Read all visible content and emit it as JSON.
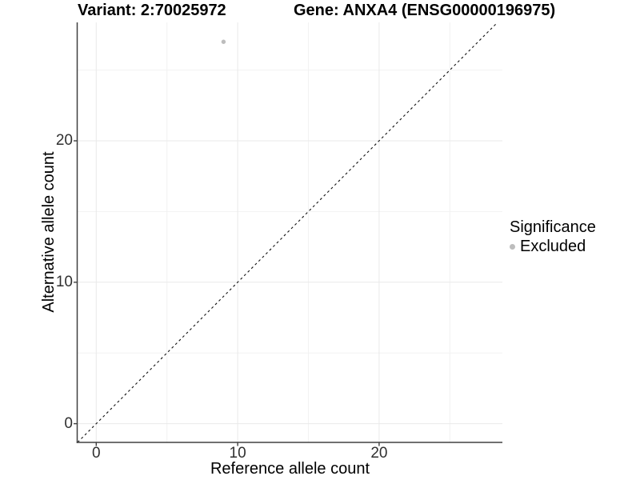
{
  "titles": {
    "variant": "Variant: 2:70025972",
    "gene": "Gene: ANXA4 (ENSG00000196975)"
  },
  "axes": {
    "x": {
      "label": "Reference allele count",
      "ticks": [
        "0",
        "10",
        "20"
      ]
    },
    "y": {
      "label": "Alternative allele count",
      "ticks": [
        "0",
        "10",
        "20"
      ]
    }
  },
  "legend": {
    "title": "Significance",
    "items": [
      {
        "label": "Excluded",
        "color": "#BDBDBD"
      }
    ]
  },
  "chart_data": {
    "type": "scatter",
    "title": "Variant: 2:70025972 / Gene: ANXA4 (ENSG00000196975)",
    "xlabel": "Reference allele count",
    "ylabel": "Alternative allele count",
    "xlim": [
      -1.32,
      28.73
    ],
    "ylim": [
      -1.33,
      28.37
    ],
    "x_major_ticks": [
      0,
      10,
      20
    ],
    "x_minor_ticks": [
      5,
      15,
      25
    ],
    "y_major_ticks": [
      0,
      10,
      20
    ],
    "y_minor_ticks": [
      5,
      15,
      25
    ],
    "grid": true,
    "legend_position": "right",
    "reference_line": {
      "type": "identity_y_equals_x",
      "style": "dashed",
      "color": "#111111"
    },
    "series": [
      {
        "name": "Excluded",
        "color": "#BDBDBD",
        "marker": "circle",
        "points": [
          [
            9,
            27
          ]
        ]
      }
    ]
  },
  "colors": {
    "point": "#BDBDBD",
    "axis_line": "#404040",
    "grid_major": "#E9E9E9",
    "grid_minor": "#F2F2F2",
    "dashed_line": "#111111",
    "tick_text": "#303030"
  }
}
